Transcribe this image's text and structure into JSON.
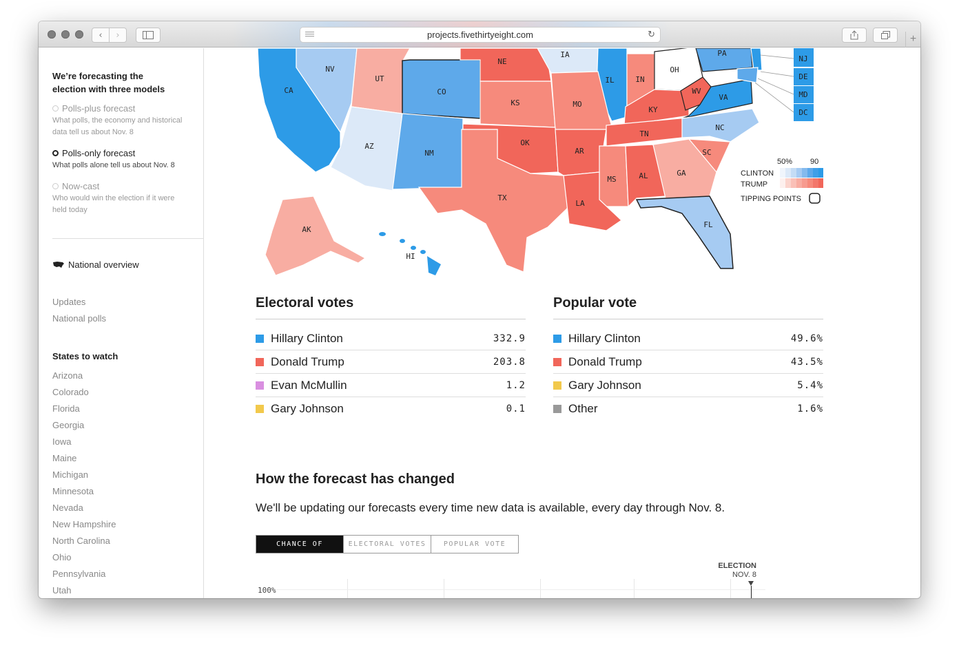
{
  "browser": {
    "url": "projects.fivethirtyeight.com"
  },
  "sidebar": {
    "intro": "We’re forecasting the election with three models",
    "models": [
      {
        "name": "Polls-plus forecast",
        "desc": "What polls, the economy and historical data tell us about Nov. 8",
        "selected": false
      },
      {
        "name": "Polls-only forecast",
        "desc": "What polls alone tell us about Nov. 8",
        "selected": true
      },
      {
        "name": "Now-cast",
        "desc": "Who would win the election if it were held today",
        "selected": false
      }
    ],
    "national_overview": "National overview",
    "links": [
      "Updates",
      "National polls"
    ],
    "states_heading": "States to watch",
    "states": [
      "Arizona",
      "Colorado",
      "Florida",
      "Georgia",
      "Iowa",
      "Maine",
      "Michigan",
      "Minnesota",
      "Nevada",
      "New Hampshire",
      "North Carolina",
      "Ohio",
      "Pennsylvania",
      "Utah"
    ]
  },
  "map": {
    "legend": {
      "low": "50%",
      "high": "90",
      "clinton": "CLINTON",
      "trump": "TRUMP",
      "tipping": "TIPPING POINTS"
    },
    "colors": {
      "d1": "#dce9f8",
      "d2": "#a6cbf2",
      "d3": "#5ea9ea",
      "d4": "#2d9be7",
      "r1": "#fbd4cd",
      "r2": "#f8ada2",
      "r3": "#f68a7c",
      "r4": "#f1665a"
    },
    "states": [
      "CA",
      "NV",
      "UT",
      "CO",
      "NE",
      "IA",
      "IL",
      "IN",
      "OH",
      "PA",
      "NJ",
      "DE",
      "MD",
      "DC",
      "KS",
      "MO",
      "KY",
      "WV",
      "VA",
      "AZ",
      "NM",
      "OK",
      "AR",
      "TN",
      "NC",
      "SC",
      "TX",
      "MS",
      "AL",
      "GA",
      "LA",
      "FL",
      "AK",
      "HI"
    ]
  },
  "electoral": {
    "title": "Electoral votes",
    "rows": [
      {
        "name": "Hillary Clinton",
        "value": "332.9",
        "color": "#2d9be7"
      },
      {
        "name": "Donald Trump",
        "value": "203.8",
        "color": "#f1665a"
      },
      {
        "name": "Evan McMullin",
        "value": "1.2",
        "color": "#d98fe0"
      },
      {
        "name": "Gary Johnson",
        "value": "0.1",
        "color": "#f2c94c"
      }
    ]
  },
  "popular": {
    "title": "Popular vote",
    "rows": [
      {
        "name": "Hillary Clinton",
        "value": "49.6%",
        "color": "#2d9be7"
      },
      {
        "name": "Donald Trump",
        "value": "43.5%",
        "color": "#f1665a"
      },
      {
        "name": "Gary Johnson",
        "value": "5.4%",
        "color": "#f2c94c"
      },
      {
        "name": "Other",
        "value": "1.6%",
        "color": "#999999"
      }
    ]
  },
  "changes": {
    "title": "How the forecast has changed",
    "lede": "We'll be updating our forecasts every time new data is available, every day through Nov. 8.",
    "tabs": [
      "CHANCE OF WINNING",
      "ELECTORAL VOTES",
      "POPULAR VOTE"
    ],
    "active_tab": 0,
    "election_label": "ELECTION",
    "election_date": "NOV. 8",
    "y_top": "100%"
  }
}
